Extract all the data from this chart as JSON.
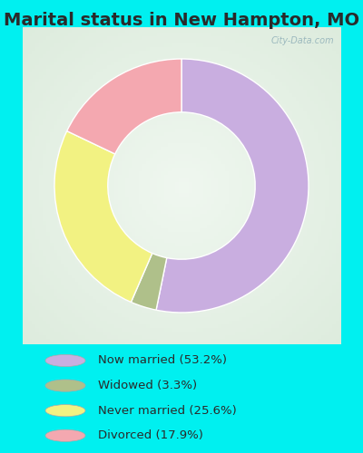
{
  "title": "Marital status in New Hampton, MO",
  "slices": [
    53.2,
    3.3,
    25.6,
    17.9
  ],
  "labels": [
    "Now married (53.2%)",
    "Widowed (3.3%)",
    "Never married (25.6%)",
    "Divorced (17.9%)"
  ],
  "colors": [
    "#c9aee0",
    "#afc08a",
    "#f2f282",
    "#f4a8b0"
  ],
  "legend_colors": [
    "#c9aee0",
    "#afc08a",
    "#f2f282",
    "#f4a8b0"
  ],
  "outer_bg": "#00f0f0",
  "chart_bg_gradient_center": "#e8f4ee",
  "chart_bg_gradient_edge": "#c8e8d8",
  "title_fontsize": 14,
  "donut_width": 0.42,
  "start_angle": 90,
  "watermark": "City-Data.com"
}
